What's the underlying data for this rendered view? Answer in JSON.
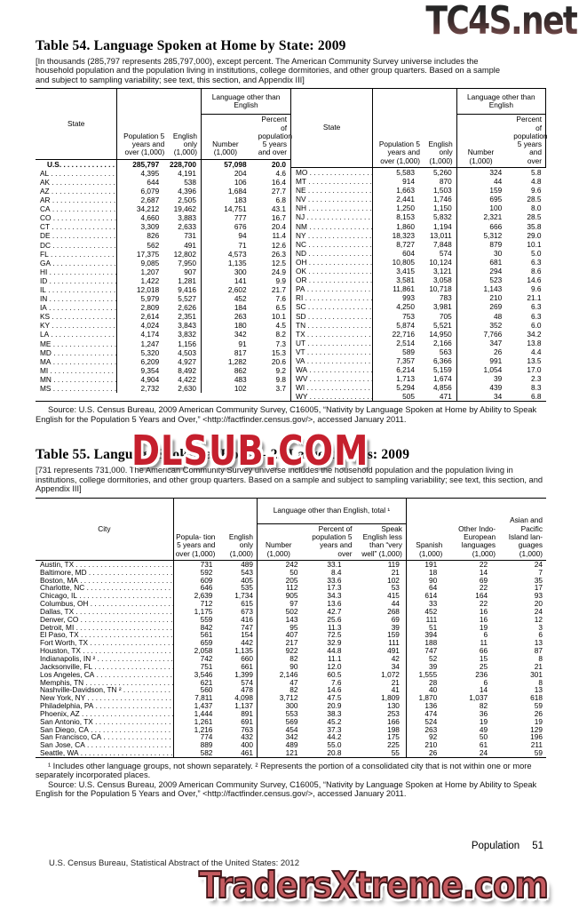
{
  "colors": {
    "watermark_red": "#c51f2d",
    "watermark_salmon": "#c45a5f",
    "ink": "#000000",
    "paper": "#ffffff"
  },
  "watermarks": {
    "top": "TC4S.net",
    "middle": "DLSUB.COM",
    "bottom": "TradersXtreme.com"
  },
  "page": {
    "section_label": "Population",
    "number": "51",
    "footer": "U.S. Census Bureau, Statistical Abstract of the United States: 2012"
  },
  "table54": {
    "title": "Table 54. Language Spoken at Home by State: 2009",
    "note": "[In thousands (285,797 represents 285,797,000), except percent. The American Community Survey universe includes the household population and the population living in institutions, college dormitories, and other group quarters. Based on a sample and subject to sampling variability; see text, this section, and Appendix III]",
    "group_label": "Language other than English",
    "col_state": "State",
    "col_population": "Population 5 years and over (1,000)",
    "col_english": "English only (1,000)",
    "col_number": "Number (1,000)",
    "col_percent": "Percent of population 5 years and over",
    "left_rows": [
      [
        "U.S.",
        "285,797",
        "228,700",
        "57,098",
        "20.0"
      ],
      [
        "AL",
        "4,395",
        "4,191",
        "204",
        "4.6"
      ],
      [
        "AK",
        "644",
        "538",
        "106",
        "16.4"
      ],
      [
        "AZ",
        "6,079",
        "4,396",
        "1,684",
        "27.7"
      ],
      [
        "AR",
        "2,687",
        "2,505",
        "183",
        "6.8"
      ],
      [
        "CA",
        "34,212",
        "19,462",
        "14,751",
        "43.1"
      ],
      [
        "CO",
        "4,660",
        "3,883",
        "777",
        "16.7"
      ],
      [
        "CT",
        "3,309",
        "2,633",
        "676",
        "20.4"
      ],
      [
        "DE",
        "826",
        "731",
        "94",
        "11.4"
      ],
      [
        "DC",
        "562",
        "491",
        "71",
        "12.6"
      ],
      [
        "FL",
        "17,375",
        "12,802",
        "4,573",
        "26.3"
      ],
      [
        "GA",
        "9,085",
        "7,950",
        "1,135",
        "12.5"
      ],
      [
        "HI",
        "1,207",
        "907",
        "300",
        "24.9"
      ],
      [
        "ID",
        "1,422",
        "1,281",
        "141",
        "9.9"
      ],
      [
        "IL",
        "12,018",
        "9,416",
        "2,602",
        "21.7"
      ],
      [
        "IN",
        "5,979",
        "5,527",
        "452",
        "7.6"
      ],
      [
        "IA",
        "2,809",
        "2,626",
        "184",
        "6.5"
      ],
      [
        "KS",
        "2,614",
        "2,351",
        "263",
        "10.1"
      ],
      [
        "KY",
        "4,024",
        "3,843",
        "180",
        "4.5"
      ],
      [
        "LA",
        "4,174",
        "3,832",
        "342",
        "8.2"
      ],
      [
        "ME",
        "1,247",
        "1,156",
        "91",
        "7.3"
      ],
      [
        "MD",
        "5,320",
        "4,503",
        "817",
        "15.3"
      ],
      [
        "MA",
        "6,209",
        "4,927",
        "1,282",
        "20.6"
      ],
      [
        "MI",
        "9,354",
        "8,492",
        "862",
        "9.2"
      ],
      [
        "MN",
        "4,904",
        "4,422",
        "483",
        "9.8"
      ],
      [
        "MS",
        "2,732",
        "2,630",
        "102",
        "3.7"
      ]
    ],
    "right_rows": [
      [
        "MO",
        "5,583",
        "5,260",
        "324",
        "5.8"
      ],
      [
        "MT",
        "914",
        "870",
        "44",
        "4.8"
      ],
      [
        "NE",
        "1,663",
        "1,503",
        "159",
        "9.6"
      ],
      [
        "NV",
        "2,441",
        "1,746",
        "695",
        "28.5"
      ],
      [
        "NH",
        "1,250",
        "1,150",
        "100",
        "8.0"
      ],
      [
        "NJ",
        "8,153",
        "5,832",
        "2,321",
        "28.5"
      ],
      [
        "NM",
        "1,860",
        "1,194",
        "666",
        "35.8"
      ],
      [
        "NY",
        "18,323",
        "13,011",
        "5,312",
        "29.0"
      ],
      [
        "NC",
        "8,727",
        "7,848",
        "879",
        "10.1"
      ],
      [
        "ND",
        "604",
        "574",
        "30",
        "5.0"
      ],
      [
        "OH",
        "10,805",
        "10,124",
        "681",
        "6.3"
      ],
      [
        "OK",
        "3,415",
        "3,121",
        "294",
        "8.6"
      ],
      [
        "OR",
        "3,581",
        "3,058",
        "523",
        "14.6"
      ],
      [
        "PA",
        "11,861",
        "10,718",
        "1,143",
        "9.6"
      ],
      [
        "RI",
        "993",
        "783",
        "210",
        "21.1"
      ],
      [
        "SC",
        "4,250",
        "3,981",
        "269",
        "6.3"
      ],
      [
        "SD",
        "753",
        "705",
        "48",
        "6.3"
      ],
      [
        "TN",
        "5,874",
        "5,521",
        "352",
        "6.0"
      ],
      [
        "TX",
        "22,716",
        "14,950",
        "7,766",
        "34.2"
      ],
      [
        "UT",
        "2,514",
        "2,166",
        "347",
        "13.8"
      ],
      [
        "VT",
        "589",
        "563",
        "26",
        "4.4"
      ],
      [
        "VA",
        "7,357",
        "6,366",
        "991",
        "13.5"
      ],
      [
        "WA",
        "6,214",
        "5,159",
        "1,054",
        "17.0"
      ],
      [
        "WV",
        "1,713",
        "1,674",
        "39",
        "2.3"
      ],
      [
        "WI",
        "5,294",
        "4,856",
        "439",
        "8.3"
      ],
      [
        "WY",
        "505",
        "471",
        "34",
        "6.8"
      ]
    ],
    "source": "Source: U.S. Census Bureau, 2009 American Community Survey, C16005, “Nativity by Language Spoken at Home by Ability to Speak English for the Population 5 Years and Over,” <http://factfinder.census.gov/>, accessed January 2011."
  },
  "table55": {
    "title": "Table 55. Language Spoken at Home—25 Largest Cities: 2009",
    "note": "[731 represents 731,000. The American Community Survey universe includes the household population and the population living in institutions, college dormitories, and other group quarters. Based on a sample and subject to sampling variability; see text, this section, and Appendix III]",
    "group_label": "Language other than English, total ¹",
    "col_city": "City",
    "col_population": "Popula- tion 5 years and over (1,000)",
    "col_english": "English only (1,000)",
    "col_number": "Number (1,000)",
    "col_percent": "Percent of population 5 years and over",
    "col_speak": "Speak English less than “very well” (1,000)",
    "col_spanish": "Spanish (1,000)",
    "col_indo": "Other Indo- European languages (1,000)",
    "col_asian": "Asian and Pacific Island lan- guages (1,000)",
    "rows": [
      [
        "Austin, TX",
        "731",
        "489",
        "242",
        "33.1",
        "119",
        "191",
        "22",
        "24"
      ],
      [
        "Baltimore, MD",
        "592",
        "543",
        "50",
        "8.4",
        "21",
        "18",
        "14",
        "7"
      ],
      [
        "Boston, MA",
        "609",
        "405",
        "205",
        "33.6",
        "102",
        "90",
        "69",
        "35"
      ],
      [
        "Charlotte, NC",
        "646",
        "535",
        "112",
        "17.3",
        "53",
        "64",
        "22",
        "17"
      ],
      [
        "Chicago, IL",
        "2,639",
        "1,734",
        "905",
        "34.3",
        "415",
        "614",
        "164",
        "93"
      ],
      [
        "Columbus, OH",
        "712",
        "615",
        "97",
        "13.6",
        "44",
        "33",
        "22",
        "20"
      ],
      [
        "Dallas, TX",
        "1,175",
        "673",
        "502",
        "42.7",
        "268",
        "452",
        "16",
        "24"
      ],
      [
        "Denver, CO",
        "559",
        "416",
        "143",
        "25.6",
        "69",
        "111",
        "16",
        "12"
      ],
      [
        "Detroit, MI",
        "842",
        "747",
        "95",
        "11.3",
        "39",
        "51",
        "19",
        "3"
      ],
      [
        "El Paso, TX",
        "561",
        "154",
        "407",
        "72.5",
        "159",
        "394",
        "6",
        "6"
      ],
      [
        "Fort Worth, TX",
        "659",
        "442",
        "217",
        "32.9",
        "111",
        "188",
        "11",
        "13"
      ],
      [
        "Houston, TX",
        "2,058",
        "1,135",
        "922",
        "44.8",
        "491",
        "747",
        "66",
        "87"
      ],
      [
        "Indianapolis, IN ²",
        "742",
        "660",
        "82",
        "11.1",
        "42",
        "52",
        "15",
        "8"
      ],
      [
        "Jacksonville, FL",
        "751",
        "661",
        "90",
        "12.0",
        "34",
        "39",
        "25",
        "21"
      ],
      [
        "Los Angeles, CA",
        "3,546",
        "1,399",
        "2,146",
        "60.5",
        "1,072",
        "1,555",
        "236",
        "301"
      ],
      [
        "Memphis, TN",
        "621",
        "574",
        "47",
        "7.6",
        "21",
        "28",
        "6",
        "8"
      ],
      [
        "Nashville-Davidson, TN ²",
        "560",
        "478",
        "82",
        "14.6",
        "41",
        "40",
        "14",
        "13"
      ],
      [
        "New York, NY",
        "7,811",
        "4,098",
        "3,712",
        "47.5",
        "1,809",
        "1,870",
        "1,037",
        "618"
      ],
      [
        "Philadelphia, PA",
        "1,437",
        "1,137",
        "300",
        "20.9",
        "130",
        "136",
        "82",
        "59"
      ],
      [
        "Phoenix, AZ",
        "1,444",
        "891",
        "553",
        "38.3",
        "253",
        "474",
        "36",
        "26"
      ],
      [
        "San Antonio, TX",
        "1,261",
        "691",
        "569",
        "45.2",
        "166",
        "524",
        "19",
        "19"
      ],
      [
        "San Diego, CA",
        "1,216",
        "763",
        "454",
        "37.3",
        "198",
        "263",
        "49",
        "129"
      ],
      [
        "San Francisco, CA",
        "774",
        "432",
        "342",
        "44.2",
        "175",
        "92",
        "50",
        "196"
      ],
      [
        "San Jose, CA",
        "889",
        "400",
        "489",
        "55.0",
        "225",
        "210",
        "61",
        "211"
      ],
      [
        "Seattle, WA",
        "582",
        "461",
        "121",
        "20.8",
        "55",
        "26",
        "24",
        "59"
      ]
    ],
    "footnote": "¹ Includes other language groups, not shown separately. ² Represents the portion of a consolidated city that is not within one or more separately incorporated places.",
    "source": "Source: U.S. Census Bureau, 2009 American Community Survey, C16005, “Nativity by Language Spoken at Home by Ability to Speak English for the Population 5 Years and Over,” <http://factfinder.census.gov/>, accessed January 2011."
  }
}
